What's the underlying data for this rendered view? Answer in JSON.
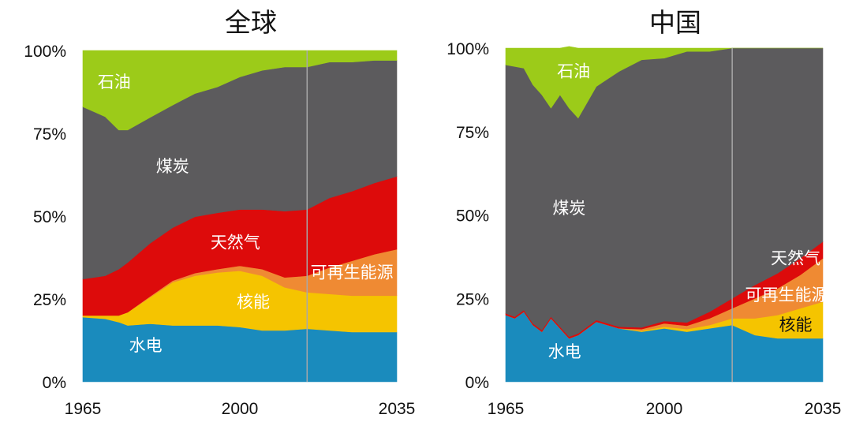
{
  "colors": {
    "hydro": "#1a8bbd",
    "nuclear": "#f5c400",
    "renewables": "#ef8a33",
    "gas": "#dd0b0b",
    "coal": "#5c5b5d",
    "oil": "#9ccb19",
    "divider": "#a8a8a8"
  },
  "chart_data": [
    {
      "type": "area",
      "stacked": true,
      "normalized": true,
      "title": "全球",
      "xlabel": "",
      "ylabel": "",
      "xlim": [
        1965,
        2035
      ],
      "ylim": [
        0,
        100
      ],
      "x_ticks": [
        "1965",
        "2000",
        "2035"
      ],
      "y_ticks": [
        "0%",
        "25%",
        "50%",
        "75%",
        "100%"
      ],
      "divider_x": 2015,
      "x": [
        1965,
        1970,
        1973,
        1975,
        1980,
        1985,
        1990,
        1995,
        2000,
        2005,
        2010,
        2015,
        2020,
        2025,
        2030,
        2035
      ],
      "series": [
        {
          "key": "hydro",
          "name": "水电",
          "values": [
            19.5,
            19,
            18,
            17,
            17.5,
            17,
            17,
            17,
            16.5,
            15.5,
            15.5,
            16,
            15.5,
            15,
            15,
            15
          ]
        },
        {
          "key": "nuclear",
          "name": "核能",
          "values": [
            0.5,
            1,
            2,
            4,
            8,
            13,
            15,
            16,
            17,
            16.5,
            13,
            11,
            11,
            11,
            11,
            11
          ]
        },
        {
          "key": "renewables",
          "name": "可再生能源",
          "values": [
            0,
            0,
            0,
            0,
            0.3,
            0.5,
            0.8,
            1,
            1.5,
            2,
            3,
            5,
            8,
            10.5,
            12.5,
            14
          ]
        },
        {
          "key": "gas",
          "name": "天然气",
          "values": [
            11,
            12,
            14,
            15,
            16,
            16,
            17,
            17,
            17,
            18,
            20,
            20,
            21,
            21,
            21.5,
            22
          ]
        },
        {
          "key": "coal",
          "name": "煤炭",
          "values": [
            52,
            48,
            42,
            40,
            38,
            37,
            37.2,
            38,
            40,
            42,
            43.5,
            43,
            41,
            39,
            37,
            35
          ]
        },
        {
          "key": "oil",
          "name": "石油",
          "values": [
            17,
            20,
            24,
            24,
            20.2,
            16.5,
            13,
            11,
            8,
            6,
            5,
            5,
            3.5,
            3.5,
            3,
            3
          ]
        }
      ],
      "labels": [
        {
          "key": "oil",
          "text": "石油",
          "x": 1972,
          "y": 90.5,
          "color": "light"
        },
        {
          "key": "coal",
          "text": "煤炭",
          "x": 1985,
          "y": 65,
          "color": "light"
        },
        {
          "key": "gas",
          "text": "天然气",
          "x": 1999,
          "y": 42,
          "color": "light"
        },
        {
          "key": "nuclear",
          "text": "核能",
          "x": 2003,
          "y": 24,
          "color": "light"
        },
        {
          "key": "renewables",
          "text": "可再生能源",
          "x": 2025,
          "y": 33,
          "color": "light"
        },
        {
          "key": "hydro",
          "text": "水电",
          "x": 1979,
          "y": 11,
          "color": "light"
        }
      ]
    },
    {
      "type": "area",
      "stacked": true,
      "normalized": true,
      "title": "中国",
      "xlabel": "",
      "ylabel": "",
      "xlim": [
        1965,
        2035
      ],
      "ylim": [
        0,
        100
      ],
      "x_ticks": [
        "1965",
        "2000",
        "2035"
      ],
      "y_ticks": [
        "0%",
        "25%",
        "50%",
        "75%",
        "100%"
      ],
      "divider_x": 2015,
      "x": [
        1965,
        1967,
        1969,
        1971,
        1973,
        1975,
        1977,
        1979,
        1981,
        1985,
        1990,
        1995,
        2000,
        2005,
        2010,
        2015,
        2020,
        2025,
        2030,
        2035
      ],
      "series": [
        {
          "key": "hydro",
          "name": "水电",
          "values": [
            20,
            19,
            21,
            17,
            15,
            19,
            16,
            13,
            14,
            18,
            16,
            15,
            16,
            15,
            16,
            17,
            14,
            13,
            13,
            13
          ]
        },
        {
          "key": "nuclear",
          "name": "核能",
          "values": [
            0,
            0,
            0,
            0,
            0,
            0,
            0,
            0,
            0,
            0,
            0,
            0.3,
            0.5,
            0.8,
            1,
            2,
            5,
            7,
            9,
            11
          ]
        },
        {
          "key": "renewables",
          "name": "可再生能源",
          "values": [
            0,
            0,
            0,
            0,
            0,
            0,
            0,
            0,
            0,
            0,
            0,
            0.5,
            1,
            1,
            2,
            3,
            6,
            8,
            10,
            13
          ]
        },
        {
          "key": "gas",
          "name": "天然气",
          "values": [
            0.5,
            0.5,
            0.5,
            0.5,
            0.5,
            0.5,
            0.5,
            0.5,
            0.5,
            0.5,
            0.5,
            0.5,
            0.7,
            1,
            2,
            3,
            4,
            4.5,
            5,
            5
          ]
        },
        {
          "key": "coal",
          "name": "煤炭",
          "values": [
            74.5,
            75,
            72.5,
            71.5,
            70.5,
            62.5,
            69.5,
            68.5,
            64.5,
            70,
            76.5,
            80.2,
            78.8,
            81.2,
            78,
            75,
            71,
            67.5,
            63,
            58
          ]
        },
        {
          "key": "oil",
          "name": "石油",
          "values": [
            5,
            5.5,
            6,
            11,
            14,
            18,
            14,
            18.5,
            21,
            11.5,
            7,
            3.5,
            3,
            1,
            1,
            0,
            0,
            0,
            0,
            0
          ]
        }
      ],
      "labels": [
        {
          "key": "oil",
          "text": "石油",
          "x": 1980,
          "y": 93,
          "color": "light"
        },
        {
          "key": "coal",
          "text": "煤炭",
          "x": 1979,
          "y": 52,
          "color": "light"
        },
        {
          "key": "gas",
          "text": "天然气",
          "x": 2029,
          "y": 37,
          "color": "light"
        },
        {
          "key": "renewables",
          "text": "可再生能源",
          "x": 2027,
          "y": 26,
          "color": "light"
        },
        {
          "key": "nuclear",
          "text": "核能",
          "x": 2029,
          "y": 17,
          "color": "dark"
        },
        {
          "key": "hydro",
          "text": "水电",
          "x": 1978,
          "y": 9,
          "color": "light"
        }
      ]
    }
  ]
}
